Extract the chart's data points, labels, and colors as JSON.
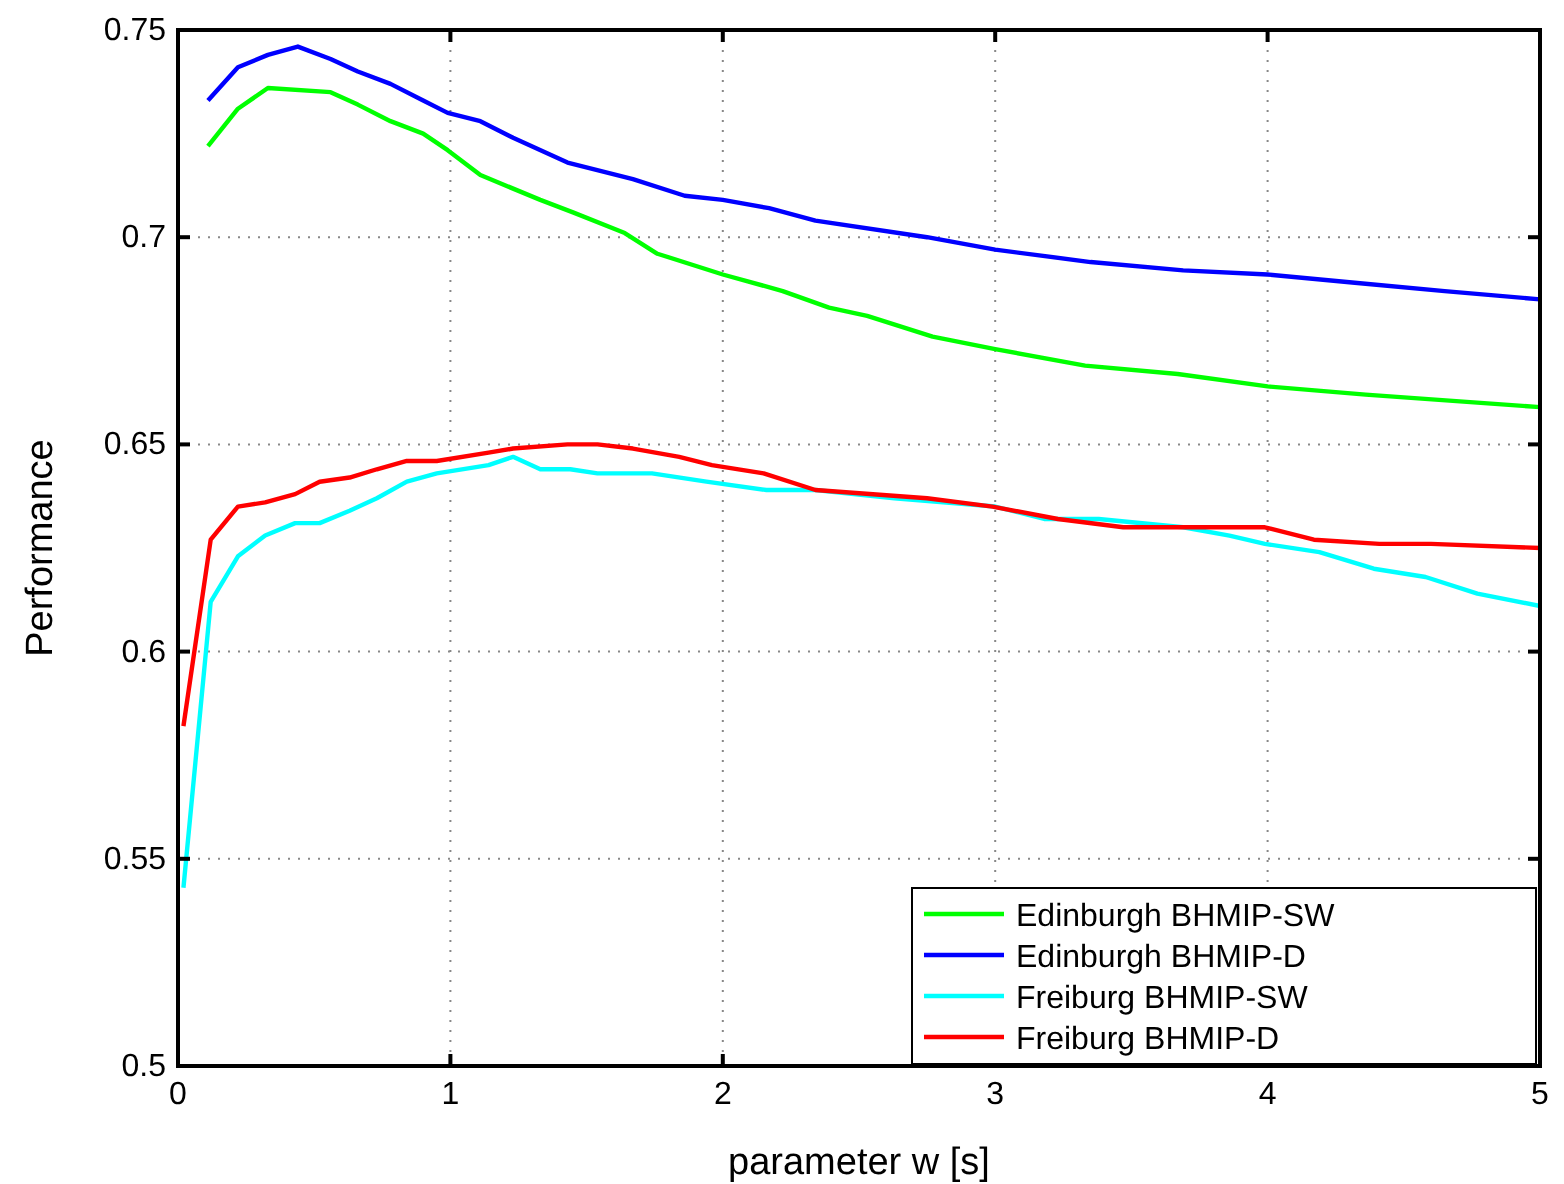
{
  "chart_data": {
    "type": "line",
    "xlabel": "parameter w [s]",
    "ylabel": "Performance",
    "xlim": [
      0,
      5
    ],
    "xticks": [
      0,
      1,
      2,
      3,
      4,
      5
    ],
    "ylim": [
      0.5,
      0.75
    ],
    "yticks": [
      0.5,
      0.55,
      0.6,
      0.65,
      0.7,
      0.75
    ],
    "grid": true,
    "legend": "bottom right",
    "line_style": "solid",
    "series": [
      {
        "name": "Edinburgh BHMIP-SW",
        "color": "#00ff00",
        "x": [
          0.11,
          0.22,
          0.33,
          0.56,
          0.66,
          0.78,
          0.9,
          0.99,
          1.11,
          1.33,
          1.45,
          1.64,
          1.76,
          2.0,
          2.22,
          2.39,
          2.53,
          2.77,
          3.0,
          3.33,
          3.67,
          4.0,
          4.36,
          5.0
        ],
        "values": [
          0.722,
          0.731,
          0.736,
          0.735,
          0.732,
          0.728,
          0.725,
          0.721,
          0.715,
          0.709,
          0.706,
          0.701,
          0.696,
          0.691,
          0.687,
          0.683,
          0.681,
          0.676,
          0.673,
          0.669,
          0.667,
          0.664,
          0.662,
          0.659
        ]
      },
      {
        "name": "Edinburgh BHMIP-D",
        "color": "#0000ff",
        "x": [
          0.11,
          0.22,
          0.33,
          0.44,
          0.56,
          0.66,
          0.78,
          0.9,
          0.99,
          1.11,
          1.23,
          1.43,
          1.67,
          1.86,
          2.0,
          2.17,
          2.34,
          2.75,
          3.0,
          3.35,
          3.69,
          4.0,
          4.32,
          4.65,
          5.0
        ],
        "values": [
          0.733,
          0.741,
          0.744,
          0.746,
          0.743,
          0.74,
          0.737,
          0.733,
          0.73,
          0.728,
          0.724,
          0.718,
          0.714,
          0.71,
          0.709,
          0.707,
          0.704,
          0.7,
          0.697,
          0.694,
          0.692,
          0.691,
          0.689,
          0.687,
          0.685
        ]
      },
      {
        "name": "Freiburg BHMIP-SW",
        "color": "#00ffff",
        "x": [
          0.02,
          0.12,
          0.22,
          0.32,
          0.43,
          0.52,
          0.63,
          0.73,
          0.84,
          0.95,
          1.14,
          1.23,
          1.33,
          1.44,
          1.54,
          1.74,
          1.94,
          2.16,
          2.34,
          2.63,
          3.0,
          3.18,
          3.38,
          3.69,
          3.86,
          3.99,
          4.19,
          4.39,
          4.58,
          4.77,
          5.0
        ],
        "values": [
          0.543,
          0.612,
          0.623,
          0.628,
          0.631,
          0.631,
          0.634,
          0.637,
          0.641,
          0.643,
          0.645,
          0.647,
          0.644,
          0.644,
          0.643,
          0.643,
          0.641,
          0.639,
          0.639,
          0.637,
          0.635,
          0.632,
          0.632,
          0.63,
          0.628,
          0.626,
          0.624,
          0.62,
          0.618,
          0.614,
          0.611
        ]
      },
      {
        "name": "Freiburg BHMIP-D",
        "color": "#ff0000",
        "x": [
          0.02,
          0.12,
          0.22,
          0.32,
          0.43,
          0.52,
          0.63,
          0.73,
          0.84,
          0.95,
          1.14,
          1.23,
          1.43,
          1.54,
          1.67,
          1.84,
          1.96,
          2.15,
          2.34,
          2.75,
          2.99,
          3.23,
          3.47,
          3.74,
          3.99,
          4.17,
          4.41,
          4.6,
          5.0
        ],
        "values": [
          0.582,
          0.627,
          0.635,
          0.636,
          0.638,
          0.641,
          0.642,
          0.644,
          0.646,
          0.646,
          0.648,
          0.649,
          0.65,
          0.65,
          0.649,
          0.647,
          0.645,
          0.643,
          0.639,
          0.637,
          0.635,
          0.632,
          0.63,
          0.63,
          0.63,
          0.627,
          0.626,
          0.626,
          0.625
        ]
      }
    ]
  }
}
